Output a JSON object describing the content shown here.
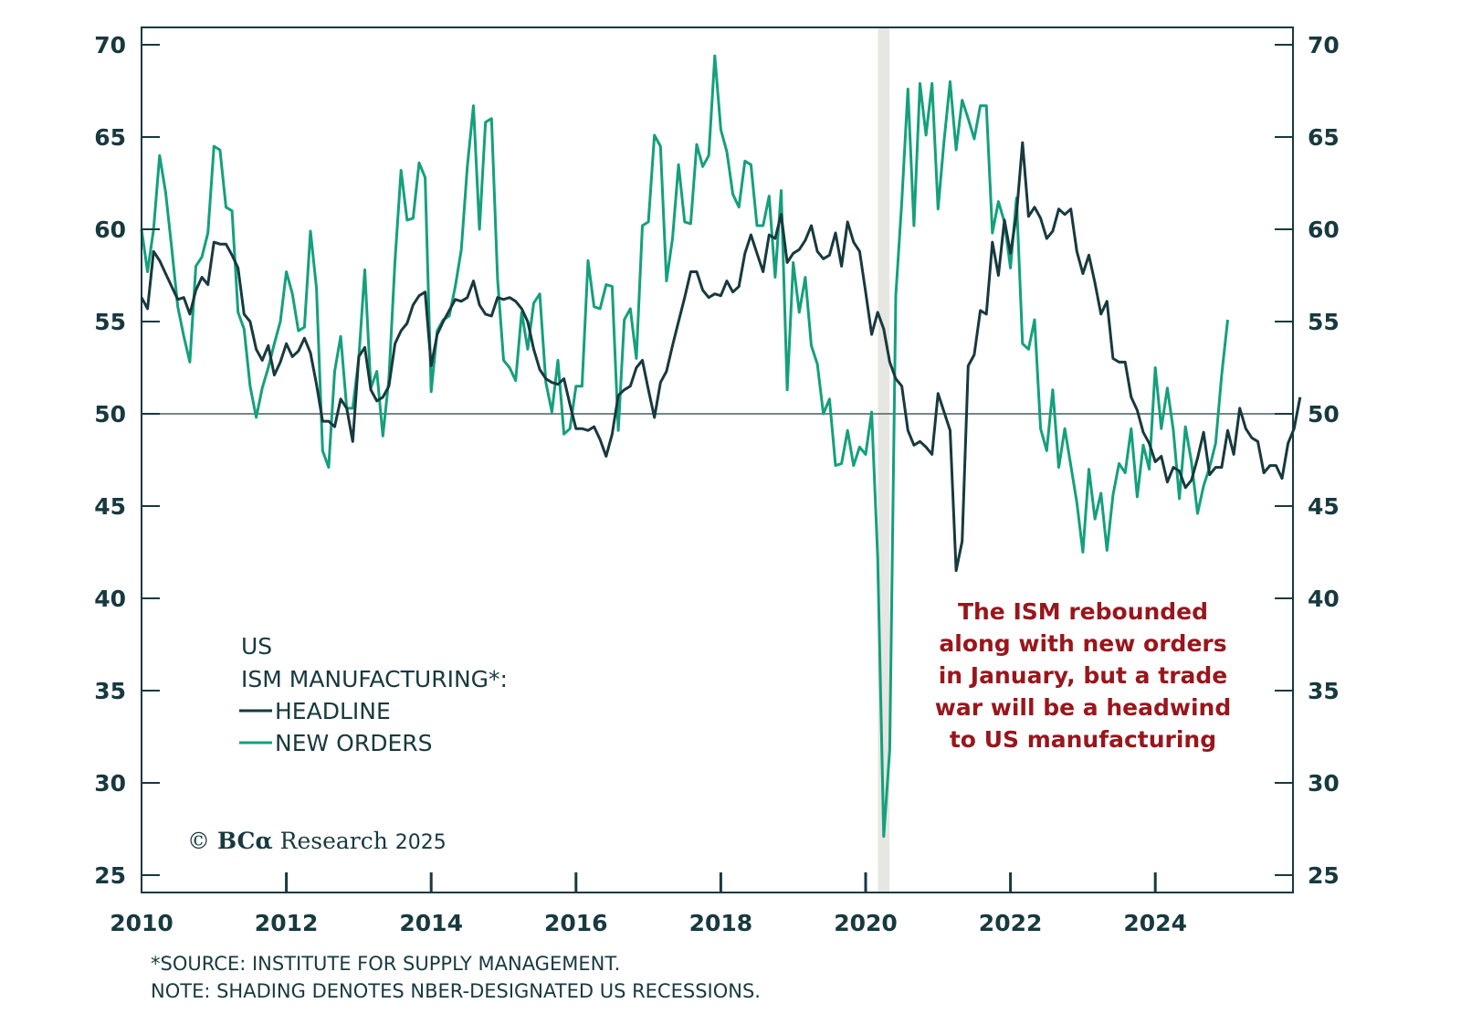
{
  "chart_data": {
    "type": "line",
    "title": "US ISM MANUFACTURING*",
    "xlabel": "",
    "ylabel": "",
    "x_start": "2010-01",
    "frequency": "monthly",
    "xlim": [
      2010,
      2026
    ],
    "ylim": [
      25,
      71
    ],
    "x_ticks": [
      "2010",
      "2012",
      "2014",
      "2016",
      "2018",
      "2020",
      "2022",
      "2024"
    ],
    "x_tick_values": [
      2010,
      2012,
      2014,
      2016,
      2018,
      2020,
      2022,
      2024
    ],
    "y_ticks": [
      "25",
      "30",
      "35",
      "40",
      "45",
      "50",
      "55",
      "60",
      "65",
      "70"
    ],
    "y_tick_values": [
      25,
      30,
      35,
      40,
      45,
      50,
      55,
      60,
      65,
      70
    ],
    "reference_line": 50,
    "recession_shading": [
      [
        2020.17,
        2020.33
      ]
    ],
    "legend": {
      "title_lines": [
        "US",
        "ISM MANUFACTURING*:"
      ],
      "placement": "bottom-left"
    },
    "series": [
      {
        "name": "HEADLINE",
        "color": "#17393f",
        "values": [
          56.3,
          55.7,
          58.8,
          58.3,
          57.6,
          56.9,
          56.2,
          56.3,
          55.4,
          56.7,
          57.4,
          57.0,
          59.3,
          59.2,
          59.2,
          58.6,
          57.9,
          55.4,
          55.0,
          53.5,
          52.9,
          53.7,
          52.1,
          52.8,
          53.8,
          53.1,
          53.4,
          54.1,
          53.3,
          51.6,
          49.6,
          49.6,
          49.3,
          50.8,
          50.3,
          48.5,
          53.1,
          53.6,
          51.3,
          50.7,
          50.9,
          51.5,
          53.8,
          54.5,
          54.9,
          55.9,
          56.4,
          56.6,
          52.6,
          54.3,
          55.0,
          55.6,
          56.2,
          56.1,
          56.3,
          57.2,
          55.9,
          55.4,
          55.3,
          56.3,
          56.2,
          56.3,
          56.1,
          55.7,
          55.0,
          53.5,
          52.4,
          51.9,
          51.7,
          51.6,
          51.9,
          50.5,
          49.2,
          49.2,
          49.1,
          49.3,
          48.6,
          47.7,
          48.9,
          51.0,
          51.3,
          51.5,
          52.5,
          52.9,
          51.3,
          49.8,
          51.7,
          52.3,
          53.7,
          55.0,
          56.3,
          57.7,
          57.7,
          56.7,
          56.3,
          56.5,
          56.4,
          57.2,
          56.6,
          56.9,
          58.7,
          59.7,
          58.7,
          57.7,
          59.7,
          59.5,
          60.8,
          58.2,
          58.7,
          58.9,
          59.4,
          60.2,
          58.8,
          58.4,
          58.6,
          59.8,
          58.0,
          60.4,
          59.3,
          58.8,
          56.6,
          54.3,
          55.5,
          54.6,
          52.8,
          51.9,
          51.5,
          49.1,
          48.3,
          48.5,
          48.2,
          47.8,
          51.1,
          50.1,
          49.1,
          41.5,
          43.1,
          52.6,
          53.2,
          55.6,
          55.4,
          59.3,
          57.5,
          60.5,
          58.7,
          60.8,
          64.7,
          60.7,
          61.2,
          60.6,
          59.5,
          59.9,
          61.1,
          60.8,
          61.1,
          58.8,
          57.6,
          58.6,
          57.1,
          55.4,
          56.1,
          53.0,
          52.8,
          52.8,
          50.9,
          50.2,
          49.0,
          48.4,
          47.4,
          47.7,
          46.3,
          47.1,
          46.9,
          46.0,
          46.4,
          47.6,
          49.0,
          46.7,
          47.1,
          47.1,
          49.1,
          47.8,
          50.3,
          49.2,
          48.7,
          48.5,
          46.8,
          47.2,
          47.2,
          46.5,
          48.4,
          49.2,
          50.9
        ]
      },
      {
        "name": "NEW ORDERS",
        "color": "#14a07c",
        "values": [
          60.0,
          57.7,
          60.0,
          64.0,
          62.0,
          59.0,
          55.8,
          54.2,
          52.8,
          58.0,
          58.5,
          59.8,
          64.5,
          64.3,
          61.2,
          61.0,
          55.5,
          54.6,
          51.5,
          49.8,
          51.4,
          52.5,
          53.8,
          55.0,
          57.7,
          56.5,
          54.5,
          54.7,
          59.9,
          56.8,
          48.0,
          47.1,
          52.3,
          54.2,
          50.3,
          50.3,
          53.0,
          57.8,
          51.4,
          52.3,
          48.8,
          51.9,
          58.3,
          63.2,
          60.5,
          60.6,
          63.6,
          62.8,
          51.2,
          54.5,
          55.1,
          55.3,
          56.9,
          58.9,
          63.4,
          66.7,
          60.0,
          65.8,
          66.0,
          57.3,
          52.9,
          52.5,
          51.8,
          55.5,
          53.5,
          56.0,
          56.5,
          51.7,
          50.1,
          52.9,
          48.9,
          49.2,
          51.5,
          51.5,
          58.3,
          55.8,
          55.7,
          57.0,
          56.9,
          49.1,
          55.1,
          55.7,
          53.0,
          60.2,
          60.4,
          65.1,
          64.5,
          57.2,
          59.5,
          63.5,
          60.4,
          60.3,
          64.6,
          63.4,
          64.0,
          69.4,
          65.4,
          64.2,
          61.9,
          61.2,
          63.7,
          63.5,
          60.2,
          60.2,
          61.8,
          57.4,
          62.1,
          51.3,
          58.2,
          55.5,
          57.4,
          53.7,
          52.7,
          50.0,
          50.8,
          47.2,
          47.3,
          49.1,
          47.2,
          48.2,
          47.8,
          50.1,
          42.2,
          27.1,
          31.8,
          56.4,
          61.5,
          67.6,
          60.2,
          67.9,
          65.1,
          67.9,
          61.1,
          64.8,
          68.0,
          64.3,
          67.0,
          66.0,
          64.9,
          66.7,
          66.7,
          59.8,
          61.5,
          60.4,
          57.9,
          61.7,
          53.8,
          53.5,
          55.1,
          49.2,
          48.0,
          51.3,
          47.1,
          49.2,
          47.2,
          45.2,
          42.5,
          47.0,
          44.3,
          45.7,
          42.6,
          45.6,
          47.3,
          46.8,
          49.2,
          45.5,
          48.3,
          47.0,
          52.5,
          49.2,
          51.4,
          49.1,
          45.4,
          49.3,
          47.4,
          44.6,
          46.1,
          47.1,
          48.4,
          52.1,
          55.1
        ]
      }
    ],
    "annotation": {
      "lines": [
        "The ISM rebounded",
        "along with new orders",
        "in January, but a trade",
        "war will be a headwind",
        "to US manufacturing"
      ],
      "color": "#98161c"
    }
  },
  "legend": {
    "line1": "US",
    "line2": "ISM MANUFACTURING*:",
    "headline_label": "HEADLINE",
    "new_orders_label": "NEW ORDERS"
  },
  "credit": {
    "symbol": "©",
    "brand": "BCα",
    "name": "Research",
    "year": "2025"
  },
  "footnote": {
    "source": "*SOURCE: INSTITUTE FOR SUPPLY MANAGEMENT.",
    "note": "NOTE: SHADING DENOTES NBER-DESIGNATED US RECESSIONS."
  },
  "colors": {
    "headline": "#17393f",
    "new_orders": "#14a07c",
    "axis": "#17393f",
    "recession_shade": "#e6e6e3",
    "annotation": "#98161c"
  }
}
